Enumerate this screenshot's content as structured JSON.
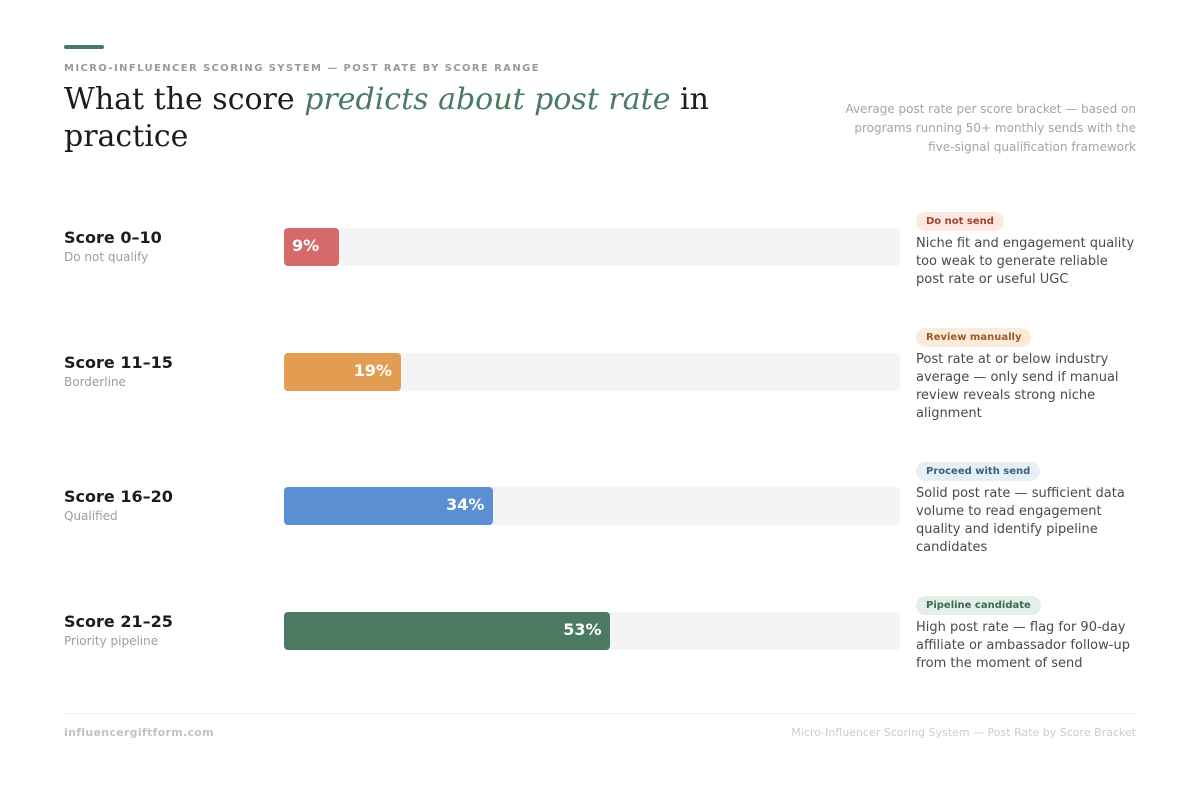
{
  "header": {
    "eyebrow": "MICRO-INFLUENCER SCORING SYSTEM — POST RATE BY SCORE RANGE",
    "title_before": "What the score ",
    "title_emphasis": "predicts about post rate",
    "title_after": " in practice",
    "subtitle": "Average post rate per score bracket — based on programs running 50+ monthly sends with the five-signal qualification framework"
  },
  "colors": {
    "accent": "#4a7a62",
    "red": "#d46a6a",
    "orange": "#e29d52",
    "blue": "#5b8fd3",
    "green": "#4a7a62"
  },
  "chart_data": {
    "type": "bar",
    "orientation": "horizontal",
    "title": "What the score predicts about post rate in practice",
    "unit": "%",
    "xlim": [
      0,
      100
    ],
    "categories": [
      "Score 0–10",
      "Score 11–15",
      "Score 16–20",
      "Score 21–25"
    ],
    "values": [
      9,
      19,
      34,
      53
    ],
    "labels": [
      "9%",
      "19%",
      "34%",
      "53%"
    ],
    "subtitles": [
      "Do not qualify",
      "Borderline",
      "Qualified",
      "Priority pipeline"
    ],
    "bar_colors": [
      "#d46a6a",
      "#e29d52",
      "#5b8fd3",
      "#4a7a62"
    ],
    "badges": [
      {
        "label": "Do not send",
        "bg": "#fbe8e0",
        "fg": "#a2452a"
      },
      {
        "label": "Review manually",
        "bg": "#fbebdd",
        "fg": "#9a5a22"
      },
      {
        "label": "Proceed with send",
        "bg": "#e6eef6",
        "fg": "#3e5f80"
      },
      {
        "label": "Pipeline candidate",
        "bg": "#e3efe8",
        "fg": "#3d6a52"
      }
    ],
    "notes": [
      "Niche fit and engagement quality too weak to generate reliable post rate or useful UGC",
      "Post rate at or below industry average — only send if manual review reveals strong niche alignment",
      "Solid post rate — sufficient data volume to read engagement quality and identify pipeline candidates",
      "High post rate — flag for 90-day affiliate or ambassador follow-up from the moment of send"
    ]
  },
  "footer": {
    "site": "influencergiftform.com",
    "caption": "Micro-Influencer Scoring System — Post Rate by Score Bracket"
  }
}
